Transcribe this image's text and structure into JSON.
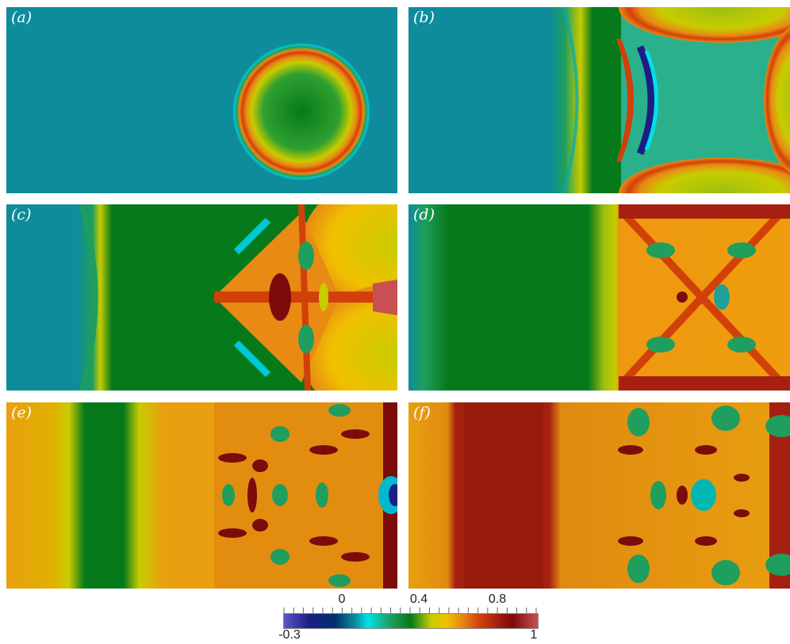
{
  "panels": [
    {
      "id": "a",
      "label": "(a)"
    },
    {
      "id": "b",
      "label": "(b)"
    },
    {
      "id": "c",
      "label": "(c)"
    },
    {
      "id": "d",
      "label": "(d)"
    },
    {
      "id": "e",
      "label": "(e)"
    },
    {
      "id": "f",
      "label": "(f)"
    }
  ],
  "colorbar": {
    "min_label": "-0.3",
    "max_label": "1",
    "tick_labels": [
      "0",
      "0.4",
      "0.8"
    ],
    "colors": [
      "#5A56C8",
      "#1C1E85",
      "#0E8C9C",
      "#00E0E8",
      "#067A1B",
      "#C8CC00",
      "#F0C000",
      "#E88A14",
      "#D2400A",
      "#7C0B0B",
      "#C95050"
    ]
  }
}
